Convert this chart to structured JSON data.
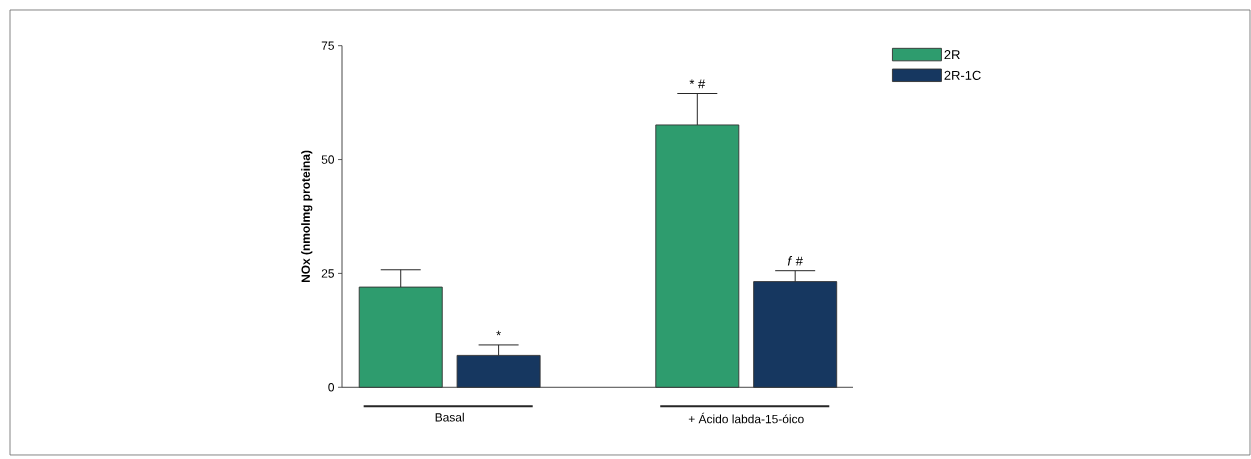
{
  "chart_data": {
    "type": "bar",
    "ylabel": "NOx (nmolmg proteina)",
    "categories": [
      "Basal",
      "+ Ácido labda-15-óico"
    ],
    "series": [
      {
        "name": "2R",
        "color": "#2e9c6e",
        "values": [
          22,
          57.6
        ],
        "errors": [
          [
            22,
            25.8
          ],
          [
            57.6,
            64.5
          ]
        ],
        "value_labels": [
          null,
          "* #"
        ]
      },
      {
        "name": "2R-1C",
        "color": "#163760",
        "values": [
          7,
          23.2
        ],
        "errors": [
          [
            7,
            9.3
          ],
          [
            23.2,
            25.6
          ]
        ],
        "value_labels": [
          "*",
          "*f* #"
        ]
      }
    ],
    "ylim": [
      0,
      75
    ],
    "yticks": [
      0,
      25,
      50,
      75
    ],
    "grid": false,
    "legend": "top right"
  }
}
